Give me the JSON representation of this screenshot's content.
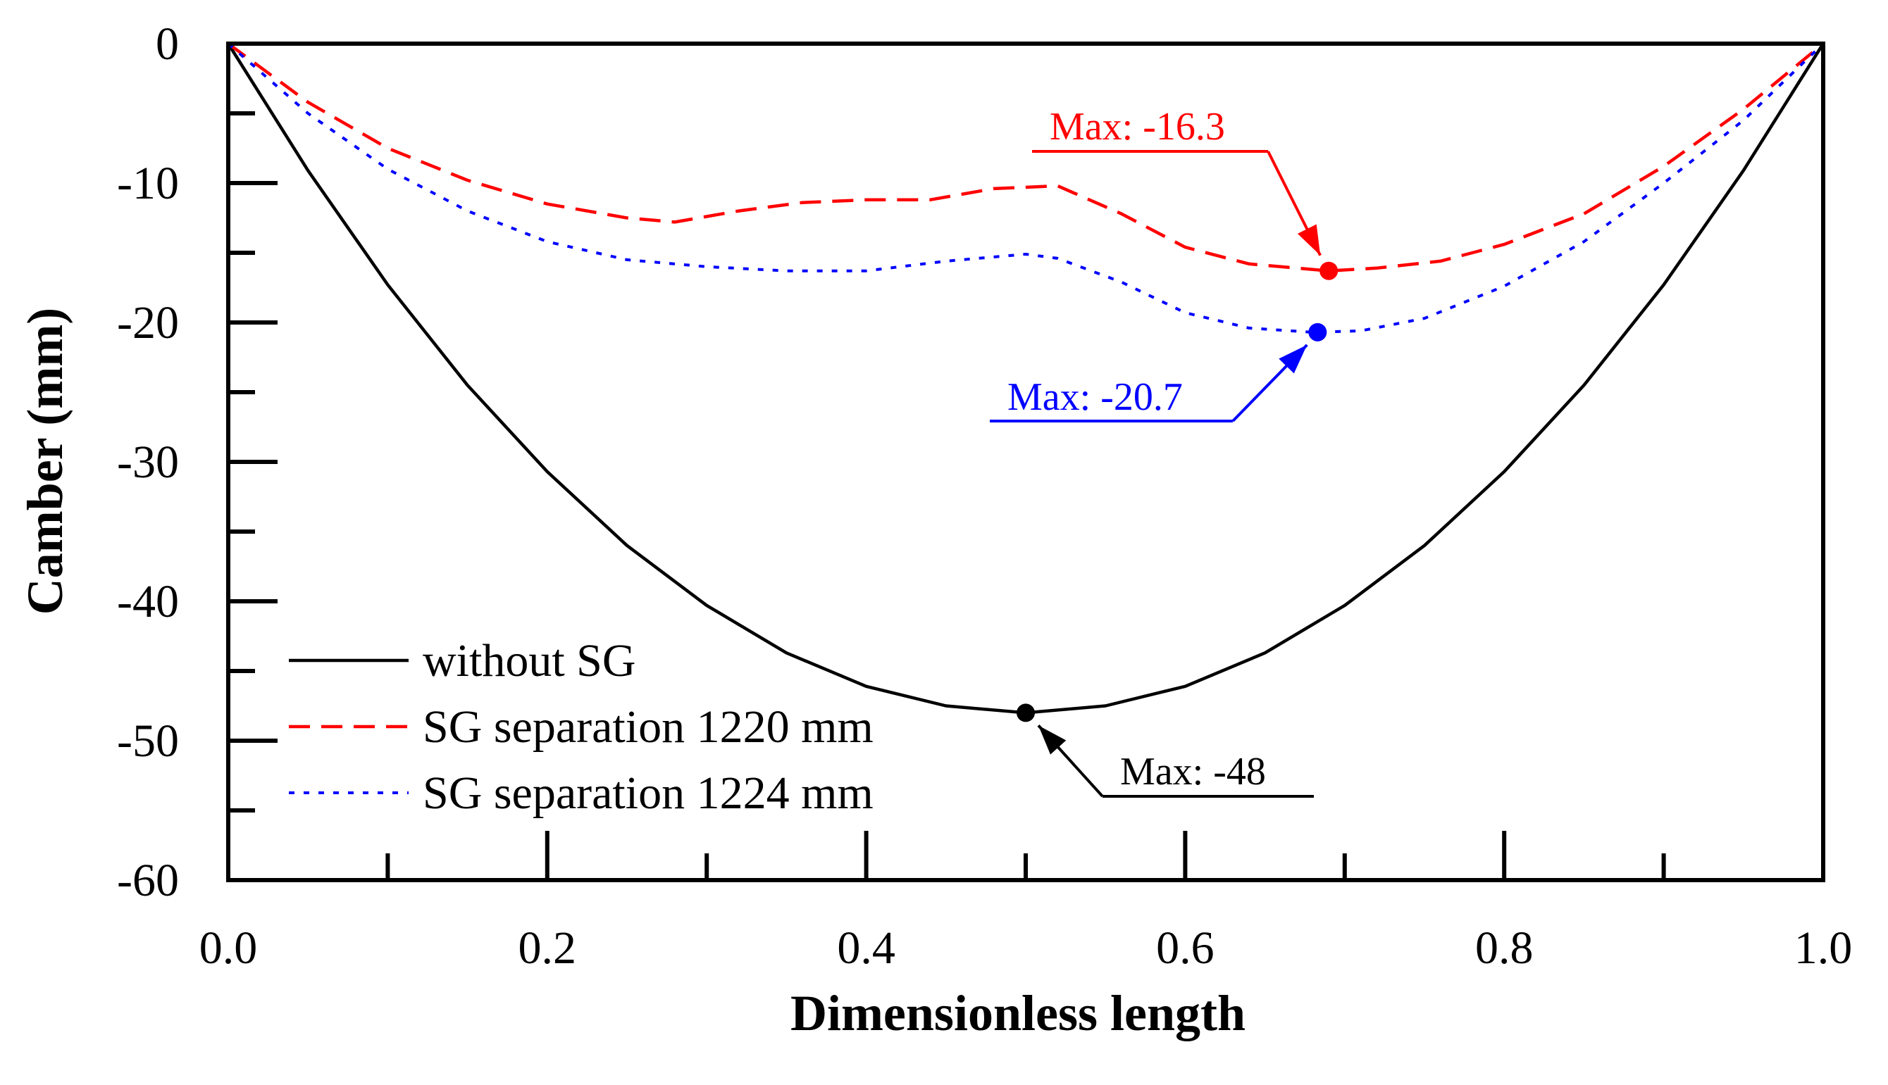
{
  "chart_data": {
    "type": "line",
    "title": "",
    "xlabel": "Dimensionless length",
    "ylabel": "Camber (mm)",
    "xlim": [
      0.0,
      1.0
    ],
    "ylim": [
      -60,
      0
    ],
    "x_ticks": [
      0.0,
      0.2,
      0.4,
      0.6,
      0.8,
      1.0
    ],
    "x_tick_labels": [
      "0.0",
      "0.2",
      "0.4",
      "0.6",
      "0.8",
      "1.0"
    ],
    "x_minor_ticks": [
      0.1,
      0.3,
      0.5,
      0.7,
      0.9
    ],
    "y_ticks": [
      0,
      -10,
      -20,
      -30,
      -40,
      -50,
      -60
    ],
    "y_tick_labels": [
      "0",
      "-10",
      "-20",
      "-30",
      "-40",
      "-50",
      "-60"
    ],
    "y_minor_ticks": [
      -5,
      -15,
      -25,
      -35,
      -45,
      -55
    ],
    "grid": false,
    "legend_position": "bottom-left",
    "series": [
      {
        "name": "without SG",
        "color": "#000000",
        "style": "solid",
        "x": [
          0.0,
          0.05,
          0.1,
          0.15,
          0.2,
          0.25,
          0.3,
          0.35,
          0.4,
          0.45,
          0.5,
          0.55,
          0.6,
          0.65,
          0.7,
          0.75,
          0.8,
          0.85,
          0.9,
          0.95,
          1.0
        ],
        "y": [
          0.0,
          -9.1,
          -17.3,
          -24.5,
          -30.7,
          -36.0,
          -40.3,
          -43.7,
          -46.1,
          -47.5,
          -48.0,
          -47.5,
          -46.1,
          -43.7,
          -40.3,
          -36.0,
          -30.7,
          -24.5,
          -17.3,
          -9.1,
          0.0
        ]
      },
      {
        "name": "SG separation 1220 mm",
        "color": "#ff0000",
        "style": "dashed",
        "x": [
          0.0,
          0.05,
          0.1,
          0.15,
          0.2,
          0.25,
          0.28,
          0.32,
          0.36,
          0.4,
          0.44,
          0.48,
          0.52,
          0.56,
          0.6,
          0.64,
          0.69,
          0.72,
          0.76,
          0.8,
          0.85,
          0.9,
          0.95,
          1.0
        ],
        "y": [
          0.0,
          -4.2,
          -7.5,
          -9.8,
          -11.5,
          -12.5,
          -12.8,
          -12.0,
          -11.4,
          -11.2,
          -11.2,
          -10.4,
          -10.2,
          -12.2,
          -14.6,
          -15.8,
          -16.3,
          -16.1,
          -15.6,
          -14.4,
          -12.2,
          -8.8,
          -4.7,
          0.0
        ]
      },
      {
        "name": "SG separation 1224 mm",
        "color": "#0000ff",
        "style": "dotted",
        "x": [
          0.0,
          0.05,
          0.1,
          0.15,
          0.2,
          0.25,
          0.3,
          0.35,
          0.4,
          0.45,
          0.5,
          0.52,
          0.56,
          0.6,
          0.64,
          0.68,
          0.71,
          0.75,
          0.8,
          0.85,
          0.9,
          0.95,
          1.0
        ],
        "y": [
          0.0,
          -5.0,
          -9.0,
          -12.0,
          -14.2,
          -15.5,
          -16.0,
          -16.3,
          -16.3,
          -15.6,
          -15.1,
          -15.4,
          -17.1,
          -19.3,
          -20.4,
          -20.7,
          -20.6,
          -19.7,
          -17.4,
          -14.2,
          -10.0,
          -5.5,
          0.0
        ]
      }
    ],
    "annotations": [
      {
        "text": "Max: -16.3",
        "x": 0.69,
        "y": -16.3,
        "color": "#ff0000"
      },
      {
        "text": "Max: -20.7",
        "x": 0.683,
        "y": -20.7,
        "color": "#0000ff"
      },
      {
        "text": "Max: -48",
        "x": 0.5,
        "y": -48.0,
        "color": "#000000"
      }
    ]
  }
}
